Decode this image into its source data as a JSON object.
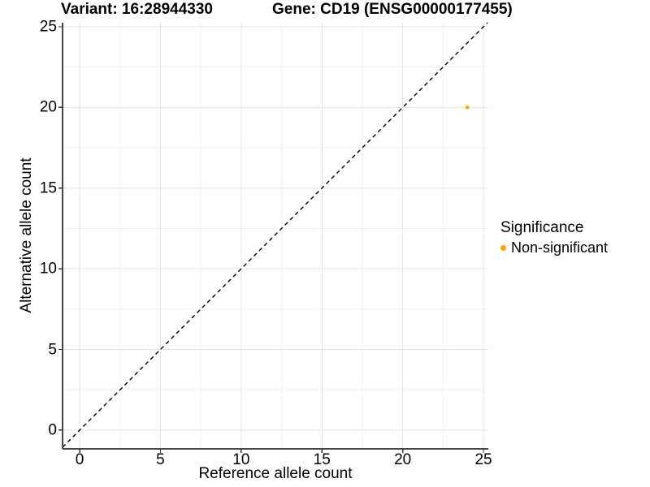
{
  "chart_data": {
    "type": "scatter",
    "titles": {
      "variant": "Variant: 16:28944330",
      "gene": "Gene: CD19 (ENSG00000177455)"
    },
    "xlabel": "Reference allele count",
    "ylabel": "Alternative allele count",
    "xlim": [
      -1.06,
      25.3
    ],
    "ylim": [
      -1.16,
      25.25
    ],
    "x_ticks": [
      0,
      5,
      10,
      15,
      20,
      25
    ],
    "y_ticks": [
      0,
      5,
      10,
      15,
      20,
      25
    ],
    "x_minor_ticks": [
      2.5,
      7.5,
      12.5,
      17.5,
      22.5
    ],
    "y_minor_ticks": [
      2.5,
      7.5,
      12.5,
      17.5,
      22.5
    ],
    "grid": "major+minor",
    "legend_position": "right",
    "series": [
      {
        "name": "Non-significant",
        "color": "#FFA500",
        "points": [
          {
            "x": 24,
            "y": 20
          }
        ]
      }
    ],
    "reference_line": {
      "kind": "identity y=x",
      "style": "dashed",
      "color": "#000000"
    },
    "legend": {
      "title": "Significance",
      "items": [
        {
          "label": "Non-significant",
          "color": "#FFA500"
        }
      ]
    }
  },
  "colors": {
    "background": "#FFFFFF",
    "axis_line": "#474747",
    "tick_mark": "#333333",
    "major_grid": "#E4E4E4",
    "minor_grid": "#F1F1F1",
    "text": "#000000"
  }
}
